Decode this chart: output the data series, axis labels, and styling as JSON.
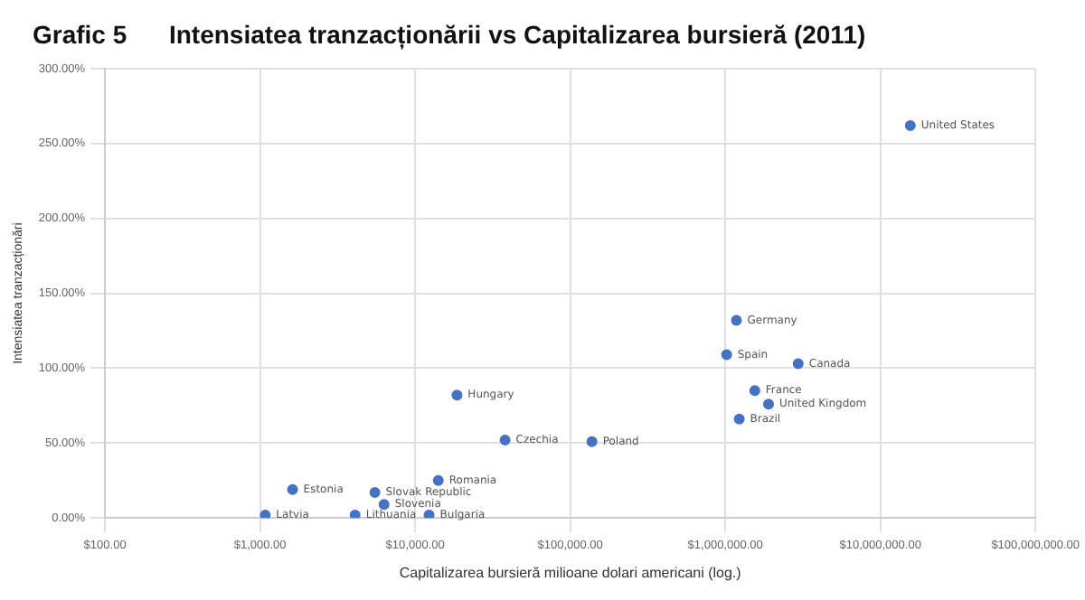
{
  "chart_data": {
    "type": "scatter",
    "title": "Grafic 5      Intensiatea tranzacționării vs Capitalizarea bursieră (2011)",
    "xlabel": "Capitalizarea bursieră milioane dolari americani (log.)",
    "ylabel": "Intensiatea tranzacționări",
    "log": "x",
    "grid": true,
    "legend": false,
    "marker": "circle",
    "x": [
      15600000,
      1180000,
      1020000,
      2950000,
      1550000,
      1900000,
      1230000,
      138000,
      18600,
      38000,
      14100,
      1620,
      5500,
      6300,
      1080,
      4100,
      12300
    ],
    "series": [
      {
        "color": "#4472c4",
        "values": [
          262,
          132,
          109,
          103,
          85,
          76,
          66,
          51,
          82,
          52,
          25,
          19,
          17,
          9,
          2,
          2,
          2
        ]
      }
    ],
    "xlim": [
      100,
      100000000
    ],
    "xticks": [
      {
        "value": 100,
        "label": "$100.00"
      },
      {
        "value": 1000,
        "label": "$1,000.00"
      },
      {
        "value": 10000,
        "label": "$10,000.00"
      },
      {
        "value": 100000,
        "label": "$100,000.00"
      },
      {
        "value": 1000000,
        "label": "$1,000,000.00"
      },
      {
        "value": 10000000,
        "label": "$10,000,000.00"
      },
      {
        "value": 100000000,
        "label": "$100,000,000.00"
      }
    ],
    "ylim": [
      0,
      300
    ],
    "yticks": [
      {
        "value": 0,
        "label": "0.00%"
      },
      {
        "value": 50,
        "label": "50.00%"
      },
      {
        "value": 100,
        "label": "100.00%"
      },
      {
        "value": 150,
        "label": "150.00%"
      },
      {
        "value": 200,
        "label": "200.00%"
      },
      {
        "value": 250,
        "label": "250.00%"
      },
      {
        "value": 300,
        "label": "300.00%"
      }
    ],
    "annotations": [
      {
        "text": "United States",
        "x": 15600000,
        "y": 262
      },
      {
        "text": "Germany",
        "x": 1180000,
        "y": 132
      },
      {
        "text": "Spain",
        "x": 1020000,
        "y": 109
      },
      {
        "text": "Canada",
        "x": 2950000,
        "y": 103
      },
      {
        "text": "France",
        "x": 1550000,
        "y": 85
      },
      {
        "text": "United Kingdom",
        "x": 1900000,
        "y": 76
      },
      {
        "text": "Brazil",
        "x": 1230000,
        "y": 66
      },
      {
        "text": "Poland",
        "x": 138000,
        "y": 51
      },
      {
        "text": "Hungary",
        "x": 18600,
        "y": 82
      },
      {
        "text": "Czechia",
        "x": 38000,
        "y": 52
      },
      {
        "text": "Romania",
        "x": 14100,
        "y": 25
      },
      {
        "text": "Estonia",
        "x": 1620,
        "y": 19
      },
      {
        "text": "Slovak Republic",
        "x": 5500,
        "y": 17
      },
      {
        "text": "Slovenia",
        "x": 6300,
        "y": 9
      },
      {
        "text": "Latvia",
        "x": 1080,
        "y": 2
      },
      {
        "text": "Lithuania",
        "x": 4100,
        "y": 2
      },
      {
        "text": "Bulgaria",
        "x": 12300,
        "y": 2
      }
    ]
  }
}
